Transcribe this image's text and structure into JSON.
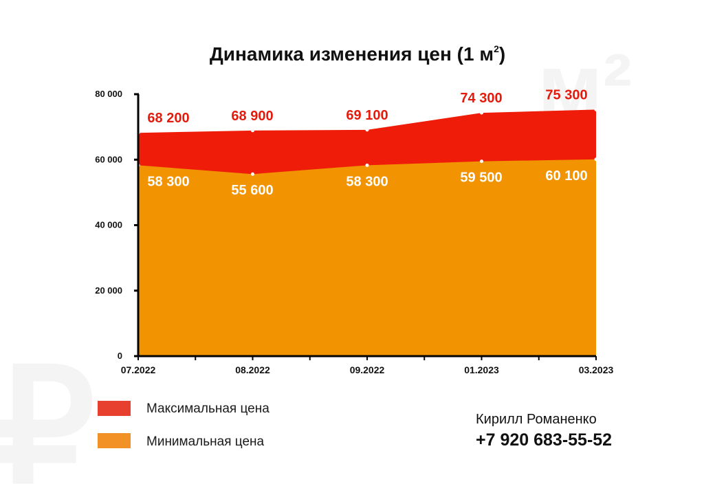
{
  "watermarks": {
    "area_unit": "м²",
    "currency": "₽"
  },
  "legend": [
    {
      "label": "Максимальная цена",
      "color": "#e8402e"
    },
    {
      "label": "Минимальная цена",
      "color": "#f29226"
    }
  ],
  "contact": {
    "name": "Кирилл Романенко",
    "phone": "+7 920 683-55-52"
  },
  "chart_data": {
    "type": "area",
    "title_main": "Динамика изменения цен (1 м",
    "title_sup": "2",
    "title_end": ")",
    "categories": [
      "07.2022",
      "08.2022",
      "09.2022",
      "01.2023",
      "03.2023"
    ],
    "series": [
      {
        "name": "Максимальная цена",
        "values": [
          68200,
          68900,
          69100,
          74300,
          75300
        ],
        "labels": [
          "68 200",
          "68 900",
          "69 100",
          "74 300",
          "75 300"
        ],
        "color": "#ee1c08"
      },
      {
        "name": "Минимальная цена",
        "values": [
          58300,
          55600,
          58300,
          59500,
          60100
        ],
        "labels": [
          "58 300",
          "55 600",
          "58 300",
          "59 500",
          "60 100"
        ],
        "color": "#f29302"
      }
    ],
    "ylim": [
      0,
      80000
    ],
    "yticks": [
      0,
      20000,
      40000,
      60000,
      80000
    ],
    "ytick_labels": [
      "0",
      "20 000",
      "40 000",
      "60 000",
      "80 000"
    ],
    "grid": false
  }
}
